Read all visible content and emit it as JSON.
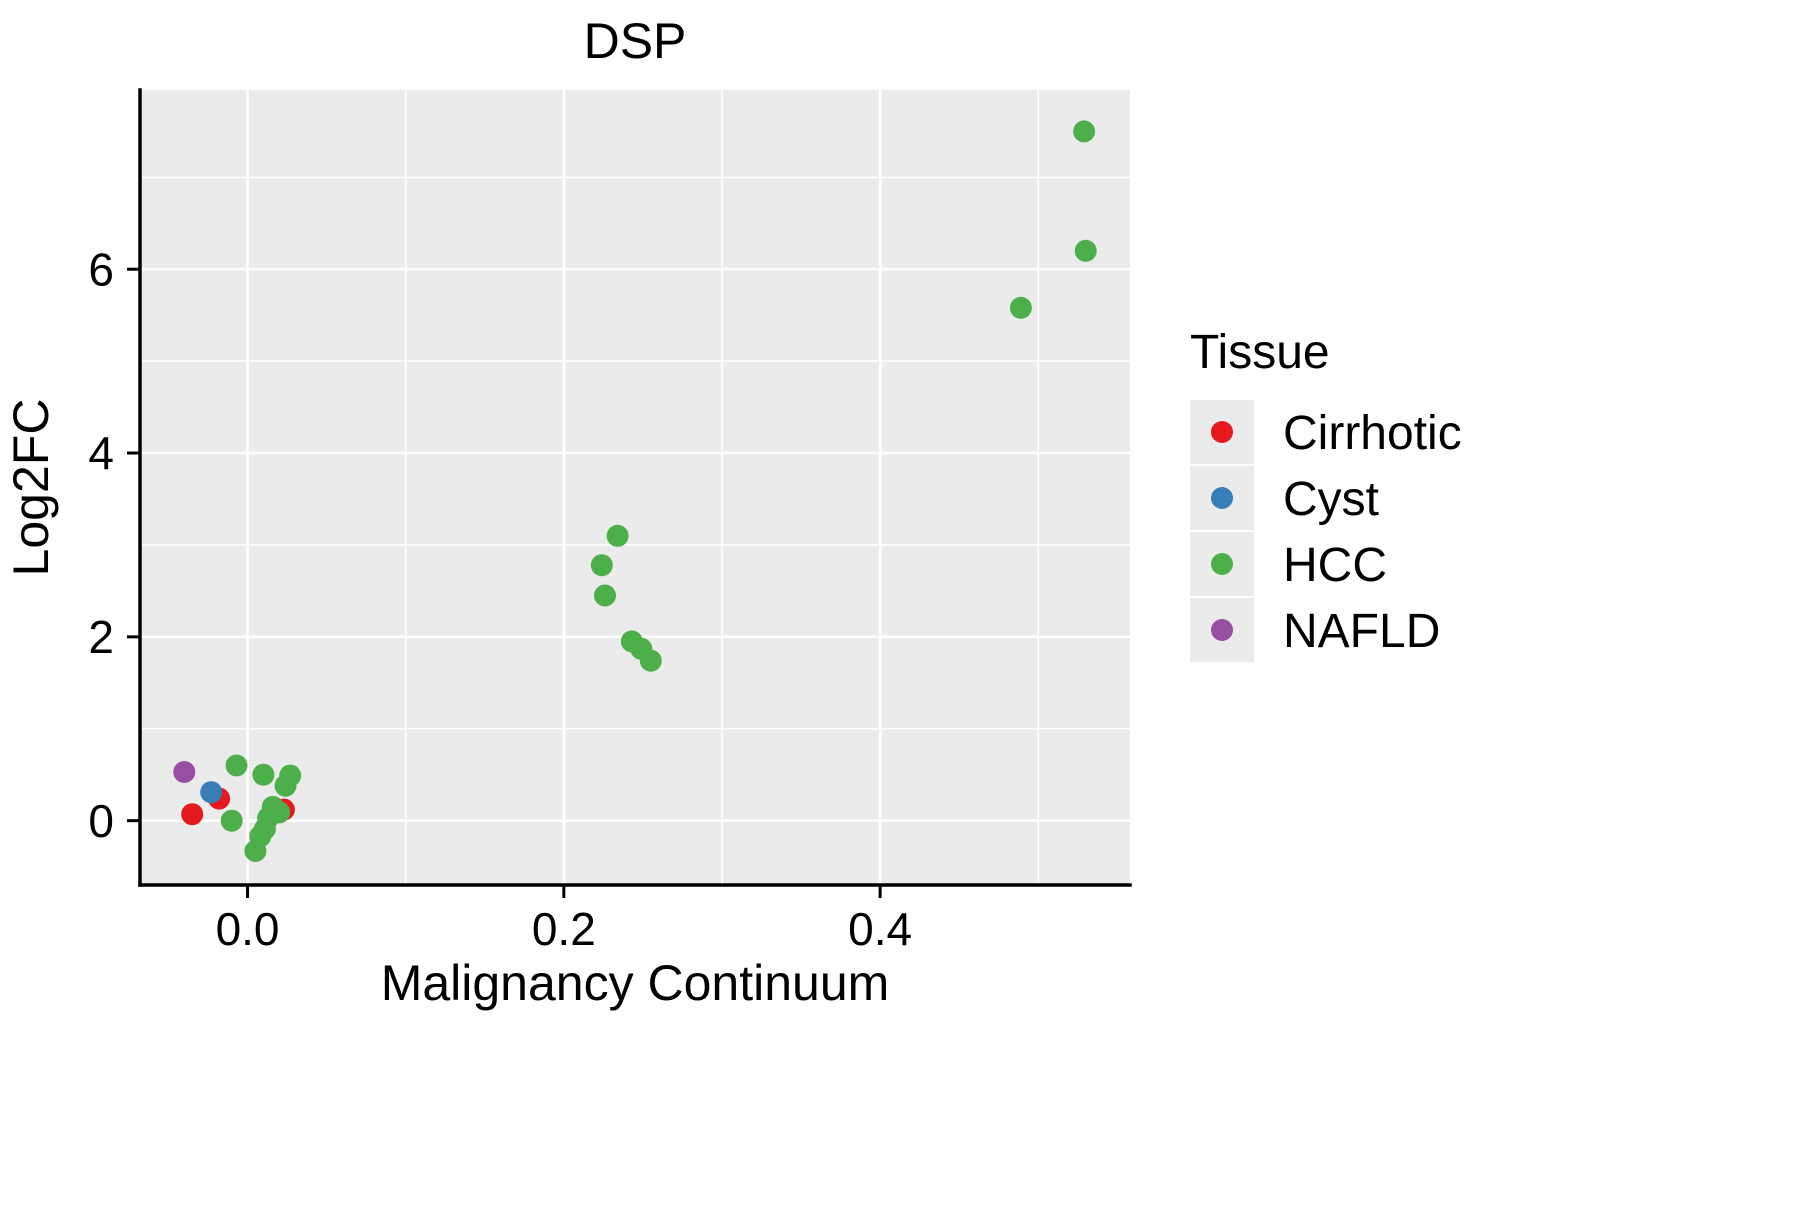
{
  "chart_data": {
    "type": "scatter",
    "title": "DSP",
    "xlabel": "Malignancy Continuum",
    "ylabel": "Log2FC",
    "xlim": [
      -0.068,
      0.558
    ],
    "ylim": [
      -0.7,
      7.95
    ],
    "x_ticks": [
      0.0,
      0.2,
      0.4
    ],
    "x_tick_labels": [
      "0.0",
      "0.2",
      "0.4"
    ],
    "y_ticks": [
      0,
      2,
      4,
      6
    ],
    "y_tick_labels": [
      "0",
      "2",
      "4",
      "6"
    ],
    "x_minor_ticks": [
      0.1,
      0.3,
      0.5
    ],
    "y_minor_ticks": [
      1,
      3,
      5,
      7
    ],
    "grid": true,
    "panel_bg": "#EBEBEB",
    "grid_color": "#FFFFFF",
    "axis_color": "#000000",
    "point_radius": 11,
    "legend": {
      "title": "Tissue",
      "position": "right",
      "key_bg": "#EBEBEB",
      "entries": [
        {
          "label": "Cirrhotic",
          "color": "#E41A1C"
        },
        {
          "label": "Cyst",
          "color": "#377EB8"
        },
        {
          "label": "HCC",
          "color": "#4DAF4A"
        },
        {
          "label": "NAFLD",
          "color": "#984EA3"
        }
      ]
    },
    "series": [
      {
        "name": "Cirrhotic",
        "color": "#E41A1C",
        "points": [
          [
            -0.035,
            0.07
          ],
          [
            -0.018,
            0.24
          ],
          [
            0.023,
            0.12
          ]
        ]
      },
      {
        "name": "Cyst",
        "color": "#377EB8",
        "points": [
          [
            -0.023,
            0.31
          ]
        ]
      },
      {
        "name": "HCC",
        "color": "#4DAF4A",
        "points": [
          [
            -0.007,
            0.6
          ],
          [
            -0.01,
            0.0
          ],
          [
            0.005,
            -0.33
          ],
          [
            0.008,
            -0.17
          ],
          [
            0.011,
            -0.09
          ],
          [
            0.013,
            0.03
          ],
          [
            0.016,
            0.15
          ],
          [
            0.01,
            0.5
          ],
          [
            0.02,
            0.09
          ],
          [
            0.024,
            0.38
          ],
          [
            0.027,
            0.49
          ],
          [
            0.224,
            2.78
          ],
          [
            0.234,
            3.1
          ],
          [
            0.226,
            2.45
          ],
          [
            0.243,
            1.95
          ],
          [
            0.249,
            1.87
          ],
          [
            0.255,
            1.74
          ],
          [
            0.489,
            5.58
          ],
          [
            0.53,
            6.2
          ],
          [
            0.529,
            7.5
          ]
        ]
      },
      {
        "name": "NAFLD",
        "color": "#984EA3",
        "points": [
          [
            -0.04,
            0.53
          ]
        ]
      }
    ]
  }
}
